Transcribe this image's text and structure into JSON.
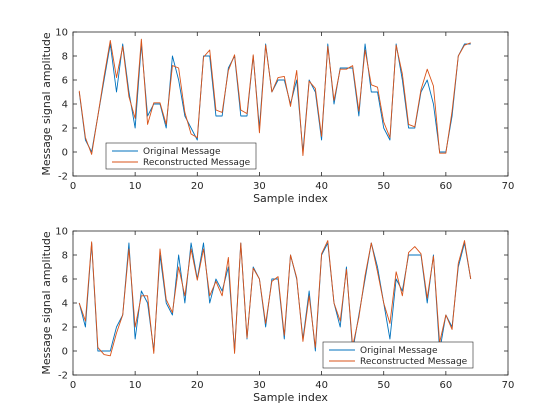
{
  "figure": {
    "background": "#ffffff"
  },
  "colors": {
    "original": "#0072bd",
    "reconstructed": "#d95319",
    "axes": "#262626"
  },
  "chart_data": [
    {
      "type": "line",
      "title": "",
      "xlabel": "Sample index",
      "ylabel": "Message signal amplitude",
      "xlim": [
        0,
        70
      ],
      "ylim": [
        -2,
        10
      ],
      "xticks": [
        0,
        10,
        20,
        30,
        40,
        50,
        60,
        70
      ],
      "yticks": [
        -2,
        0,
        2,
        4,
        6,
        8,
        10
      ],
      "grid": false,
      "legend_position": "bottom-left",
      "series": [
        {
          "name": "Original Message",
          "color": "#0072bd",
          "x": [
            1,
            2,
            3,
            4,
            5,
            6,
            7,
            8,
            9,
            10,
            11,
            12,
            13,
            14,
            15,
            16,
            17,
            18,
            19,
            20,
            21,
            22,
            23,
            24,
            25,
            26,
            27,
            28,
            29,
            30,
            31,
            32,
            33,
            34,
            35,
            36,
            37,
            38,
            39,
            40,
            41,
            42,
            43,
            44,
            45,
            46,
            47,
            48,
            49,
            50,
            51,
            52,
            53,
            54,
            55,
            56,
            57,
            58,
            59,
            60,
            61,
            62,
            63,
            64
          ],
          "values": [
            5,
            1,
            0,
            3,
            6,
            9,
            5,
            9,
            5,
            2,
            9,
            3,
            4,
            4,
            2,
            8,
            6,
            3,
            2,
            1,
            8,
            8,
            3,
            3,
            7,
            8,
            3,
            3,
            8,
            2,
            9,
            5,
            6,
            6,
            4,
            6,
            0,
            6,
            5,
            1,
            9,
            4,
            7,
            7,
            7,
            3,
            9,
            5,
            5,
            2,
            1,
            9,
            6,
            2,
            2,
            5,
            6,
            4,
            0,
            0,
            3,
            8,
            9,
            9
          ]
        },
        {
          "name": "Reconstructed Message",
          "color": "#d95319",
          "x": [
            1,
            2,
            3,
            4,
            5,
            6,
            7,
            8,
            9,
            10,
            11,
            12,
            13,
            14,
            15,
            16,
            17,
            18,
            19,
            20,
            21,
            22,
            23,
            24,
            25,
            26,
            27,
            28,
            29,
            30,
            31,
            32,
            33,
            34,
            35,
            36,
            37,
            38,
            39,
            40,
            41,
            42,
            43,
            44,
            45,
            46,
            47,
            48,
            49,
            50,
            51,
            52,
            53,
            54,
            55,
            56,
            57,
            58,
            59,
            60,
            61,
            62,
            63,
            64
          ],
          "values": [
            5.1,
            1.2,
            -0.2,
            3,
            6.3,
            9.3,
            6.2,
            8.8,
            4.6,
            2.8,
            9.4,
            2.3,
            4.1,
            4.1,
            2.3,
            7.2,
            7,
            3.3,
            1.5,
            1.2,
            7.9,
            8.5,
            3.5,
            3.3,
            6.8,
            8.1,
            3.5,
            3.2,
            8.1,
            1.6,
            8.9,
            5,
            6.2,
            6.3,
            3.8,
            6.8,
            -0.3,
            5.9,
            5.3,
            1.3,
            8.8,
            4.3,
            6.9,
            6.9,
            7.2,
            3.4,
            8.5,
            5.6,
            5.4,
            2.5,
            1.2,
            8.9,
            6.5,
            2.3,
            2.1,
            5.2,
            6.9,
            5.5,
            -0.1,
            -0.1,
            3.4,
            8,
            8.9,
            9.1
          ]
        }
      ]
    },
    {
      "type": "line",
      "title": "",
      "xlabel": "Sample index",
      "ylabel": "Message signal amplitude",
      "xlim": [
        0,
        70
      ],
      "ylim": [
        -2,
        10
      ],
      "xticks": [
        0,
        10,
        20,
        30,
        40,
        50,
        60,
        70
      ],
      "yticks": [
        -2,
        0,
        2,
        4,
        6,
        8,
        10
      ],
      "grid": false,
      "legend_position": "bottom-right",
      "series": [
        {
          "name": "Original Message",
          "color": "#0072bd",
          "x": [
            1,
            2,
            3,
            4,
            5,
            6,
            7,
            8,
            9,
            10,
            11,
            12,
            13,
            14,
            15,
            16,
            17,
            18,
            19,
            20,
            21,
            22,
            23,
            24,
            25,
            26,
            27,
            28,
            29,
            30,
            31,
            32,
            33,
            34,
            35,
            36,
            37,
            38,
            39,
            40,
            41,
            42,
            43,
            44,
            45,
            46,
            47,
            48,
            49,
            50,
            51,
            52,
            53,
            54,
            55,
            56,
            57,
            58,
            59,
            60,
            61,
            62,
            63,
            64
          ],
          "values": [
            4,
            2,
            9,
            0,
            0,
            0,
            2,
            3,
            9,
            1,
            5,
            4,
            0,
            8,
            4,
            3,
            8,
            4,
            9,
            6,
            9,
            4,
            6,
            5,
            7,
            0,
            9,
            1,
            7,
            6,
            2,
            6,
            6,
            1,
            8,
            6,
            1,
            5,
            0,
            8,
            9,
            4,
            2,
            7,
            0,
            3,
            6,
            9,
            7,
            4,
            1,
            6,
            5,
            8,
            8,
            8,
            4,
            8,
            0,
            3,
            2,
            7,
            9,
            6
          ]
        },
        {
          "name": "Reconstructed Message",
          "color": "#d95319",
          "x": [
            1,
            2,
            3,
            4,
            5,
            6,
            7,
            8,
            9,
            10,
            11,
            12,
            13,
            14,
            15,
            16,
            17,
            18,
            19,
            20,
            21,
            22,
            23,
            24,
            25,
            26,
            27,
            28,
            29,
            30,
            31,
            32,
            33,
            34,
            35,
            36,
            37,
            38,
            39,
            40,
            41,
            42,
            43,
            44,
            45,
            46,
            47,
            48,
            49,
            50,
            51,
            52,
            53,
            54,
            55,
            56,
            57,
            58,
            59,
            60,
            61,
            62,
            63,
            64
          ],
          "values": [
            4,
            2.5,
            9.1,
            0.3,
            -0.3,
            -0.4,
            1.5,
            3,
            8.5,
            2,
            4.6,
            4.6,
            -0.2,
            8.5,
            4.3,
            3.2,
            7,
            4.6,
            8.5,
            5.9,
            8.5,
            4.6,
            5.8,
            4.6,
            7.8,
            -0.2,
            9,
            1.1,
            6.9,
            6,
            2.3,
            5.8,
            6.2,
            1.3,
            8,
            6.1,
            0.8,
            4.6,
            0.3,
            8.1,
            9.2,
            4,
            2.5,
            6.8,
            0.4,
            2.8,
            6.3,
            9,
            6.6,
            4,
            2.3,
            6.6,
            4.6,
            8.2,
            8.7,
            8.1,
            4.4,
            7.9,
            0.7,
            3,
            1.8,
            7.3,
            9.2,
            6
          ]
        }
      ]
    }
  ]
}
